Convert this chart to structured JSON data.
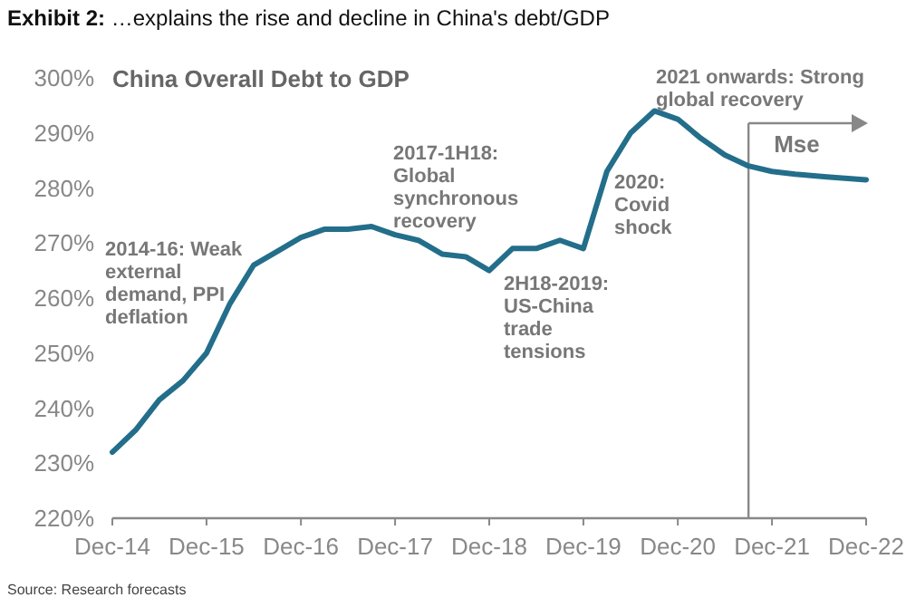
{
  "chart_data": {
    "type": "line",
    "title": "Exhibit 2: …explains the rise and decline in China's debt/GDP",
    "subtitle": "China Overall Debt to GDP",
    "x": [
      "2014-12",
      "2015-03",
      "2015-06",
      "2015-09",
      "2015-12",
      "2016-03",
      "2016-06",
      "2016-09",
      "2016-12",
      "2017-03",
      "2017-06",
      "2017-09",
      "2017-12",
      "2018-03",
      "2018-06",
      "2018-09",
      "2018-12",
      "2019-03",
      "2019-06",
      "2019-09",
      "2019-12",
      "2020-03",
      "2020-06",
      "2020-09",
      "2020-12",
      "2021-03",
      "2021-06",
      "2021-09",
      "2021-12",
      "2022-03",
      "2022-07",
      "2022-12"
    ],
    "series": [
      {
        "color": "#236e8a",
        "values": [
          232,
          236,
          241.5,
          245,
          250,
          259,
          266,
          268.5,
          271,
          272.5,
          272.5,
          273,
          271.5,
          270.5,
          268,
          267.5,
          265,
          269,
          269,
          270.5,
          269,
          283,
          290,
          294,
          292.5,
          289,
          286,
          284,
          283,
          282.5,
          282,
          281.5
        ]
      }
    ],
    "xlim": [
      "2014-12",
      "2022-12"
    ],
    "xticks": [
      {
        "value": "2014-12",
        "label": "Dec-14"
      },
      {
        "value": "2015-12",
        "label": "Dec-15"
      },
      {
        "value": "2016-12",
        "label": "Dec-16"
      },
      {
        "value": "2017-12",
        "label": "Dec-17"
      },
      {
        "value": "2018-12",
        "label": "Dec-18"
      },
      {
        "value": "2019-12",
        "label": "Dec-19"
      },
      {
        "value": "2020-12",
        "label": "Dec-20"
      },
      {
        "value": "2021-12",
        "label": "Dec-21"
      },
      {
        "value": "2022-12",
        "label": "Dec-22"
      }
    ],
    "ylim": [
      220,
      300
    ],
    "yticks": [
      {
        "value": 220,
        "label": "220%"
      },
      {
        "value": 230,
        "label": "230%"
      },
      {
        "value": 240,
        "label": "240%"
      },
      {
        "value": 250,
        "label": "250%"
      },
      {
        "value": 260,
        "label": "260%"
      },
      {
        "value": 270,
        "label": "270%"
      },
      {
        "value": 280,
        "label": "280%"
      },
      {
        "value": 290,
        "label": "290%"
      },
      {
        "value": 300,
        "label": "300%"
      }
    ],
    "ref_lines": [
      {
        "axis": "x",
        "value": "2021-09",
        "label": "Mse",
        "color": "#888888"
      }
    ],
    "annotations": [
      "2014-16: Weak external demand, PPI deflation",
      "2017-1H18: Global synchronous recovery",
      "2H18-2019: US-China trade tensions",
      "2020: Covid shock",
      "2021 onwards: Strong global recovery",
      "Source: Research forecasts"
    ]
  }
}
